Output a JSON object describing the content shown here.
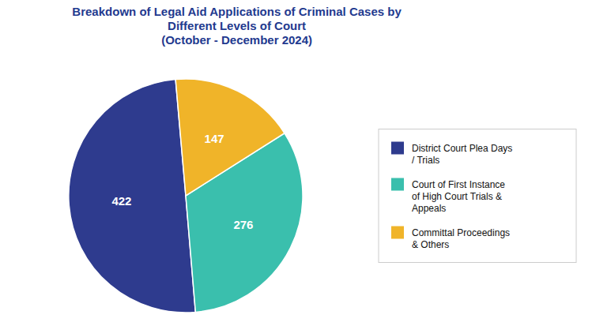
{
  "chart_data": {
    "type": "pie",
    "title": "Breakdown of Legal Aid Applications of Criminal Cases by\nDifferent Levels of Court\n(October - December 2024)",
    "categories": [
      "District Court Plea Days\n/ Trials",
      "Court of First Instance\nof High Court Trials &\nAppeals",
      "Committal Proceedings\n& Others"
    ],
    "values": [
      422,
      276,
      147
    ],
    "colors": [
      "#2E3B8E",
      "#3ABFAD",
      "#F0B429"
    ],
    "data_labels": true,
    "legend": "right"
  }
}
